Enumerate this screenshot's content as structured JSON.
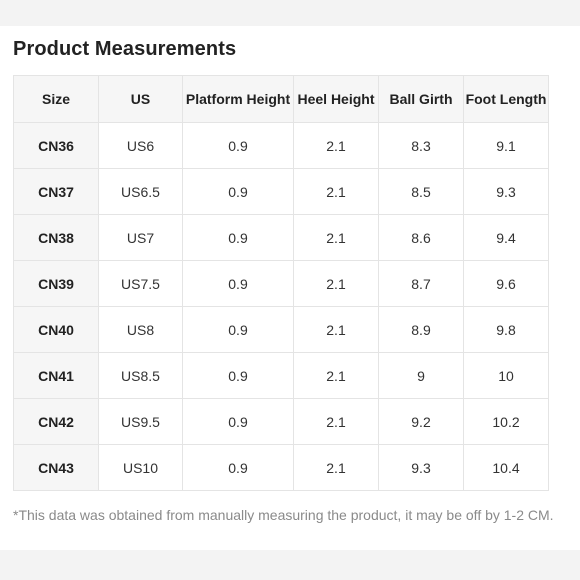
{
  "title": "Product Measurements",
  "table": {
    "headers": [
      "Size",
      "US",
      "Platform Height",
      "Heel Height",
      "Ball Girth",
      "Foot Length"
    ],
    "rows": [
      [
        "CN36",
        "US6",
        "0.9",
        "2.1",
        "8.3",
        "9.1"
      ],
      [
        "CN37",
        "US6.5",
        "0.9",
        "2.1",
        "8.5",
        "9.3"
      ],
      [
        "CN38",
        "US7",
        "0.9",
        "2.1",
        "8.6",
        "9.4"
      ],
      [
        "CN39",
        "US7.5",
        "0.9",
        "2.1",
        "8.7",
        "9.6"
      ],
      [
        "CN40",
        "US8",
        "0.9",
        "2.1",
        "8.9",
        "9.8"
      ],
      [
        "CN41",
        "US8.5",
        "0.9",
        "2.1",
        "9",
        "10"
      ],
      [
        "CN42",
        "US9.5",
        "0.9",
        "2.1",
        "9.2",
        "10.2"
      ],
      [
        "CN43",
        "US10",
        "0.9",
        "2.1",
        "9.3",
        "10.4"
      ]
    ]
  },
  "note": "*This data was obtained from manually measuring the product, it may be off by 1-2 CM."
}
